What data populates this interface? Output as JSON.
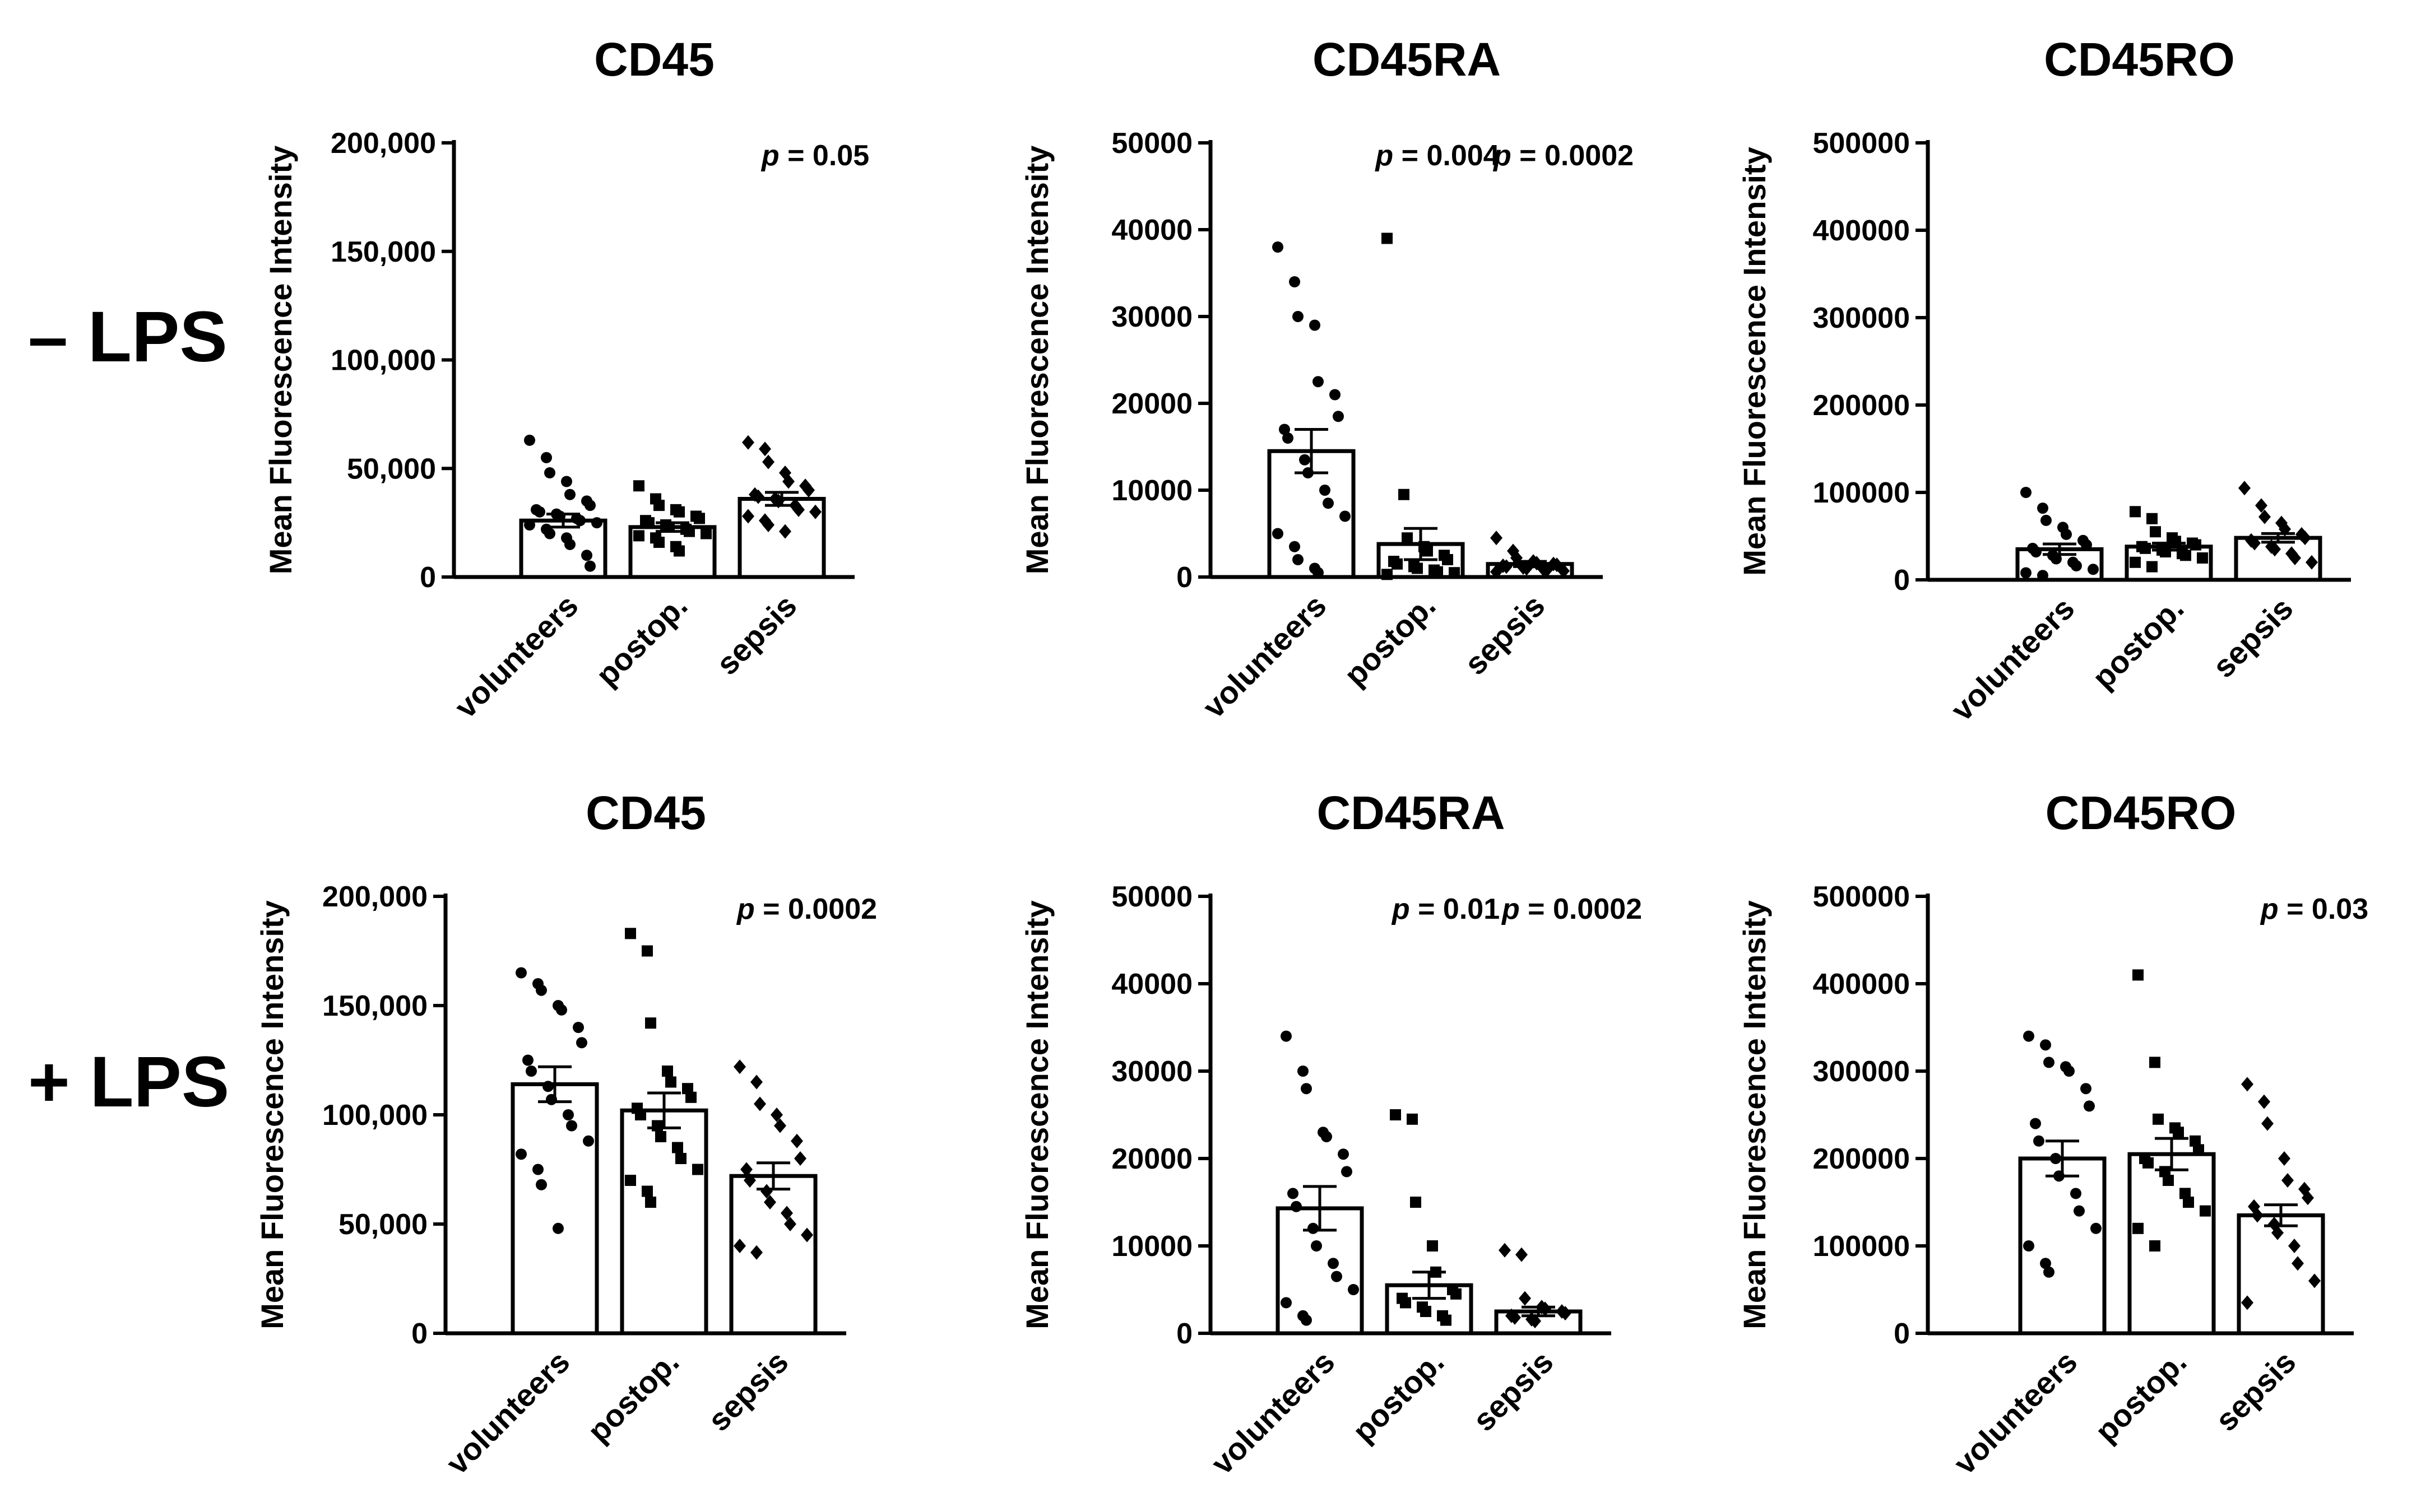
{
  "rows": [
    {
      "label": "– LPS"
    },
    {
      "label": "+ LPS"
    }
  ],
  "categories": [
    "volunteers",
    "postop.",
    "sepsis"
  ],
  "chart_data": [
    {
      "type": "bar",
      "row": 0,
      "col": 0,
      "title": "CD45",
      "ylabel": "Mean Fluorescence Intensity",
      "ylim": [
        0,
        200000
      ],
      "yticks": [
        0,
        50000,
        100000,
        150000,
        200000
      ],
      "ytick_labels": [
        "0",
        "50,000",
        "100,000",
        "150,000",
        "200,000"
      ],
      "categories": [
        "volunteers",
        "postop.",
        "sepsis"
      ],
      "values": [
        26000,
        23000,
        36000
      ],
      "sem": [
        3000,
        2000,
        3000
      ],
      "points": [
        [
          63000,
          55000,
          48000,
          44000,
          38000,
          35000,
          33000,
          31000,
          30000,
          29000,
          28000,
          27000,
          26000,
          25000,
          24000,
          22000,
          20000,
          18000,
          15000,
          10000,
          5000
        ],
        [
          42000,
          36000,
          33000,
          31000,
          30000,
          28000,
          27000,
          26000,
          25000,
          24000,
          23000,
          22000,
          21000,
          20000,
          19000,
          18000,
          16000,
          14000,
          12000
        ],
        [
          62000,
          59000,
          53000,
          48000,
          44000,
          42000,
          40000,
          38000,
          37000,
          36000,
          35000,
          33000,
          31000,
          30000,
          28000,
          26000,
          24000,
          21000
        ]
      ],
      "markers": [
        "circle",
        "square",
        "diamond"
      ],
      "annotations": [
        {
          "text_italic": "p",
          "text": " = 0.05",
          "position": "top-right"
        }
      ]
    },
    {
      "type": "bar",
      "row": 0,
      "col": 1,
      "title": "CD45RA",
      "ylabel": "Mean Fluorescence Intensity",
      "ylim": [
        0,
        50000
      ],
      "yticks": [
        0,
        10000,
        20000,
        30000,
        40000,
        50000
      ],
      "ytick_labels": [
        "0",
        "10000",
        "20000",
        "30000",
        "40000",
        "50000"
      ],
      "categories": [
        "volunteers",
        "postop.",
        "sepsis"
      ],
      "values": [
        14500,
        3800,
        1500
      ],
      "sem": [
        2500,
        1800,
        300
      ],
      "points": [
        [
          38000,
          34000,
          30000,
          29000,
          22500,
          21000,
          18500,
          17000,
          16000,
          13500,
          12000,
          10000,
          8500,
          7000,
          5000,
          3500,
          2000,
          1000,
          500
        ],
        [
          39000,
          9500,
          4500,
          3500,
          3000,
          2500,
          2000,
          1800,
          1500,
          1200,
          1000,
          800,
          600,
          500,
          300
        ],
        [
          4500,
          3000,
          2200,
          1800,
          1600,
          1500,
          1400,
          1300,
          1200,
          1100,
          1000,
          900,
          800,
          700,
          600
        ]
      ],
      "markers": [
        "circle",
        "square",
        "diamond"
      ],
      "annotations": [
        {
          "text_italic": "p",
          "text": " = 0.004",
          "position": "top-middle"
        },
        {
          "text_italic": "p",
          "text": " = 0.0002",
          "position": "top-right"
        }
      ]
    },
    {
      "type": "bar",
      "row": 0,
      "col": 2,
      "title": "CD45RO",
      "ylabel": "Mean Fluorescence Intensity",
      "ylim": [
        0,
        500000
      ],
      "yticks": [
        0,
        100000,
        200000,
        300000,
        400000,
        500000
      ],
      "ytick_labels": [
        "0",
        "100000",
        "200000",
        "300000",
        "400000",
        "500000"
      ],
      "categories": [
        "volunteers",
        "postop.",
        "sepsis"
      ],
      "values": [
        35000,
        38000,
        48000
      ],
      "sem": [
        6000,
        4000,
        5000
      ],
      "points": [
        [
          100000,
          82000,
          68000,
          60000,
          52000,
          45000,
          40000,
          36000,
          32000,
          28000,
          24000,
          20000,
          16000,
          12000,
          8000,
          5000
        ],
        [
          78000,
          70000,
          55000,
          48000,
          44000,
          42000,
          40000,
          38000,
          36000,
          34000,
          32000,
          30000,
          28000,
          25000,
          20000,
          15000
        ],
        [
          105000,
          85000,
          72000,
          65000,
          58000,
          52000,
          48000,
          45000,
          42000,
          38000,
          35000,
          30000,
          25000,
          20000
        ]
      ],
      "markers": [
        "circle",
        "square",
        "diamond"
      ],
      "annotations": []
    },
    {
      "type": "bar",
      "row": 1,
      "col": 0,
      "title": "CD45",
      "ylabel": "Mean Fluorescence Intensity",
      "ylim": [
        0,
        200000
      ],
      "yticks": [
        0,
        50000,
        100000,
        150000,
        200000
      ],
      "ytick_labels": [
        "0",
        "50,000",
        "100,000",
        "150,000",
        "200,000"
      ],
      "categories": [
        "volunteers",
        "postop.",
        "sepsis"
      ],
      "values": [
        114000,
        102000,
        72000
      ],
      "sem": [
        8000,
        8000,
        6000
      ],
      "points": [
        [
          165000,
          160000,
          157000,
          150000,
          148000,
          140000,
          133000,
          125000,
          120000,
          113000,
          107000,
          100000,
          95000,
          88000,
          82000,
          75000,
          68000,
          48000
        ],
        [
          183000,
          175000,
          142000,
          120000,
          115000,
          112000,
          108000,
          103000,
          100000,
          95000,
          90000,
          85000,
          80000,
          75000,
          70000,
          65000,
          60000
        ],
        [
          122000,
          115000,
          105000,
          100000,
          95000,
          88000,
          80000,
          75000,
          70000,
          65000,
          60000,
          55000,
          50000,
          45000,
          40000,
          37000
        ]
      ],
      "markers": [
        "circle",
        "square",
        "diamond"
      ],
      "annotations": [
        {
          "text_italic": "p",
          "text": " = 0.0002",
          "position": "top-right"
        }
      ]
    },
    {
      "type": "bar",
      "row": 1,
      "col": 1,
      "title": "CD45RA",
      "ylabel": "Mean Fluorescence Intensity",
      "ylim": [
        0,
        50000
      ],
      "yticks": [
        0,
        10000,
        20000,
        30000,
        40000,
        50000
      ],
      "ytick_labels": [
        "0",
        "10000",
        "20000",
        "30000",
        "40000",
        "50000"
      ],
      "categories": [
        "volunteers",
        "postop.",
        "sepsis"
      ],
      "values": [
        14300,
        5500,
        2500
      ],
      "sem": [
        2500,
        1500,
        500
      ],
      "points": [
        [
          34000,
          30000,
          28000,
          23000,
          22500,
          20500,
          18500,
          16000,
          14500,
          12000,
          10000,
          8000,
          6500,
          5000,
          3500,
          2000,
          1500
        ],
        [
          25000,
          24500,
          15000,
          10000,
          7000,
          5000,
          4500,
          4000,
          3500,
          3000,
          2500,
          2000,
          1500
        ],
        [
          9500,
          9000,
          4000,
          3000,
          2800,
          2500,
          2300,
          2000,
          1800,
          1600,
          1400
        ]
      ],
      "markers": [
        "circle",
        "square",
        "diamond"
      ],
      "annotations": [
        {
          "text_italic": "p",
          "text": " = 0.01",
          "position": "top-middle"
        },
        {
          "text_italic": "p",
          "text": " = 0.0002",
          "position": "top-right"
        }
      ]
    },
    {
      "type": "bar",
      "row": 1,
      "col": 2,
      "title": "CD45RO",
      "ylabel": "Mean Fluorescence Intensity",
      "ylim": [
        0,
        500000
      ],
      "yticks": [
        0,
        100000,
        200000,
        300000,
        400000,
        500000
      ],
      "ytick_labels": [
        "0",
        "100000",
        "200000",
        "300000",
        "400000",
        "500000"
      ],
      "categories": [
        "volunteers",
        "postop.",
        "sepsis"
      ],
      "values": [
        200000,
        205000,
        135000
      ],
      "sem": [
        20000,
        18000,
        12000
      ],
      "points": [
        [
          340000,
          330000,
          310000,
          305000,
          300000,
          280000,
          260000,
          240000,
          220000,
          200000,
          180000,
          160000,
          140000,
          120000,
          100000,
          80000,
          70000
        ],
        [
          410000,
          310000,
          245000,
          235000,
          230000,
          220000,
          210000,
          200000,
          195000,
          185000,
          175000,
          160000,
          150000,
          140000,
          120000,
          100000
        ],
        [
          285000,
          265000,
          240000,
          200000,
          175000,
          165000,
          155000,
          145000,
          135000,
          125000,
          115000,
          100000,
          80000,
          60000,
          35000
        ]
      ],
      "markers": [
        "circle",
        "square",
        "diamond"
      ],
      "annotations": [
        {
          "text_italic": "p",
          "text": " = 0.03",
          "position": "top-right"
        }
      ]
    }
  ]
}
